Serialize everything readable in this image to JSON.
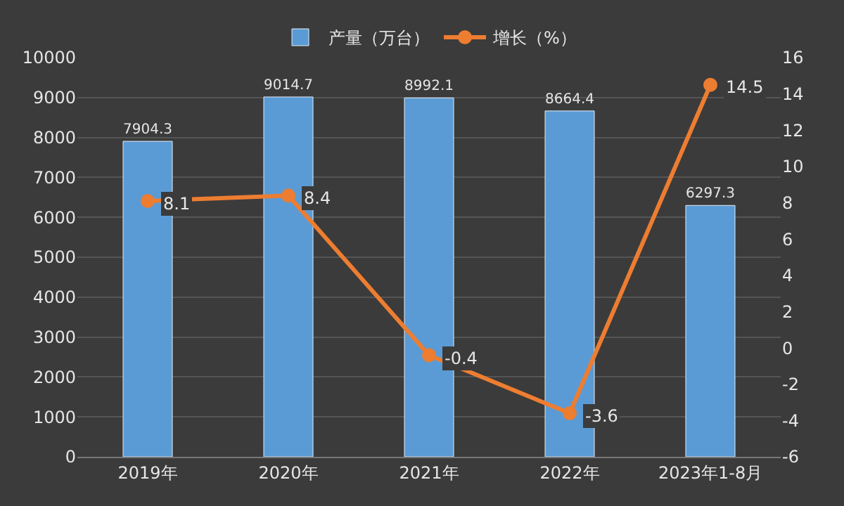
{
  "chart_data": {
    "type": "bar",
    "categories": [
      "2019年",
      "2020年",
      "2021年",
      "2022年",
      "2023年1-8月"
    ],
    "series": [
      {
        "name": "产量（万台）",
        "color": "#5b9bd5",
        "values": [
          7904.3,
          9014.7,
          8992.1,
          8664.4,
          6297.3
        ]
      },
      {
        "name": "增长（%）",
        "type": "line",
        "axis": "y2",
        "color": "#ed7d31",
        "marker": "circle",
        "values": [
          8.1,
          8.4,
          -0.4,
          -3.6,
          14.5
        ]
      }
    ],
    "ylim": [
      0,
      10000
    ],
    "yticks": [
      0,
      1000,
      2000,
      3000,
      4000,
      5000,
      6000,
      7000,
      8000,
      9000,
      10000
    ],
    "y2lim": [
      -6,
      16
    ],
    "y2ticks": [
      -6,
      -4,
      -2,
      0,
      2,
      4,
      6,
      8,
      10,
      12,
      14,
      16
    ],
    "data_labels": true,
    "grid": "y",
    "legend": "top"
  }
}
